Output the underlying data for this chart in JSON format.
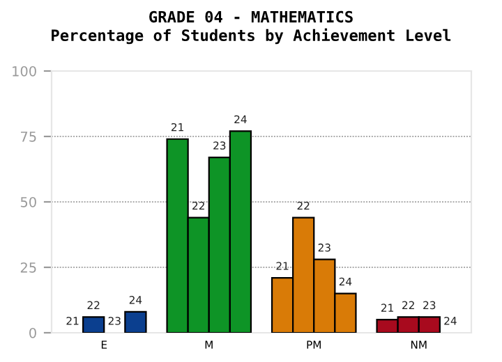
{
  "chart_data": {
    "type": "bar",
    "title": "GRADE 04 - MATHEMATICS",
    "subtitle": "Percentage of Students by Achievement Level",
    "categories": [
      "E",
      "M",
      "PM",
      "NM"
    ],
    "series": [
      {
        "name": "21",
        "colors": [
          "#0b3f8f",
          "#0e9426",
          "#d97b07",
          "#a80a1e"
        ],
        "values": [
          0,
          74,
          21,
          5
        ]
      },
      {
        "name": "22",
        "colors": [
          "#0b3f8f",
          "#0e9426",
          "#d97b07",
          "#a80a1e"
        ],
        "values": [
          6,
          44,
          44,
          6
        ]
      },
      {
        "name": "23",
        "colors": [
          "#0b3f8f",
          "#0e9426",
          "#d97b07",
          "#a80a1e"
        ],
        "values": [
          0,
          67,
          28,
          6
        ]
      },
      {
        "name": "24",
        "colors": [
          "#0b3f8f",
          "#0e9426",
          "#d97b07",
          "#a80a1e"
        ],
        "values": [
          8,
          77,
          15,
          0
        ]
      }
    ],
    "ylim": [
      0,
      100
    ],
    "yticks": [
      0,
      25,
      50,
      75,
      100
    ],
    "grid": "y",
    "legend": false
  }
}
